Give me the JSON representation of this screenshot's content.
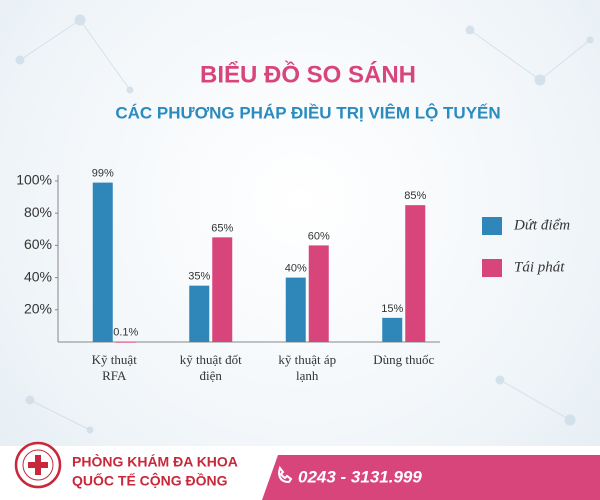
{
  "chart_data": {
    "type": "bar",
    "title": "BIỂU ĐỒ SO SÁNH",
    "subtitle": "CÁC PHƯƠNG PHÁP ĐIỀU TRỊ VIÊM LỘ TUYẾN",
    "categories": [
      "Kỹ thuật RFA",
      "kỹ thuật đốt điện",
      "kỹ thuật áp lạnh",
      "Dùng thuốc"
    ],
    "series": [
      {
        "name": "Dứt điểm",
        "color": "#2f86b9",
        "values": [
          99,
          35,
          40,
          15
        ],
        "value_labels": [
          "99%",
          "35%",
          "40%",
          "15%"
        ]
      },
      {
        "name": "Tái phát",
        "color": "#d8457b",
        "values": [
          0.1,
          65,
          60,
          85
        ],
        "value_labels": [
          "0.1%",
          "65%",
          "60%",
          "85%"
        ]
      }
    ],
    "ylim": [
      0,
      100
    ],
    "yticks": [
      {
        "value": 20,
        "label": "20%"
      },
      {
        "value": 40,
        "label": "40%"
      },
      {
        "value": 60,
        "label": "60%"
      },
      {
        "value": 80,
        "label": "80%"
      },
      {
        "value": 100,
        "label": "100%"
      }
    ],
    "grid": false,
    "legend": "right"
  },
  "footer": {
    "clinic": [
      "PHÒNG KHÁM ĐA KHOA",
      "QUỐC TẾ CỘNG ĐỒNG"
    ],
    "phone": "0243 - 3131.999"
  }
}
